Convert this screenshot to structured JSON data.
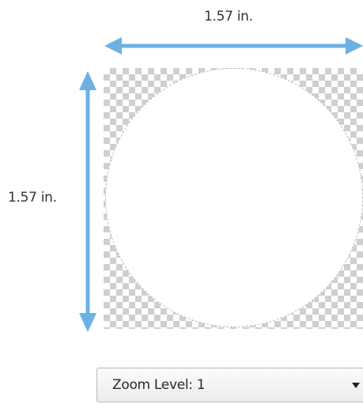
{
  "dimensions": {
    "width_text": "1.57 in.",
    "height_text": "1.57 in."
  },
  "canvas": {
    "shape": "circle",
    "background": "transparent-checkerboard",
    "arrow_color": "#6BB1E3"
  },
  "zoom": {
    "label": "Zoom Level:",
    "value": "1",
    "caret_icon": "chevron-down-icon"
  }
}
